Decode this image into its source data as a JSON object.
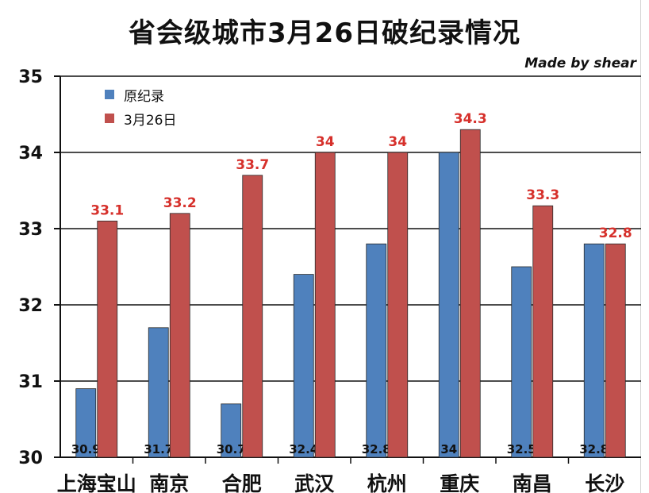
{
  "chart_data": {
    "type": "bar",
    "title": "省会级城市3月26日破纪录情况",
    "credit": "Made by shear",
    "categories": [
      "上海宝山",
      "南京",
      "合肥",
      "武汉",
      "杭州",
      "重庆",
      "南昌",
      "长沙"
    ],
    "series": [
      {
        "name": "原纪录",
        "color": "#4f81bd",
        "values": [
          30.9,
          31.7,
          30.7,
          32.4,
          32.8,
          34,
          32.5,
          32.8
        ],
        "value_labels": [
          "30.9",
          "31.7",
          "30.7",
          "32.4",
          "32.8",
          "34",
          "32.5",
          "32.8"
        ]
      },
      {
        "name": "3月26日",
        "color": "#c0504d",
        "values": [
          33.1,
          33.2,
          33.7,
          34,
          34,
          34.3,
          33.3,
          32.8
        ],
        "value_labels": [
          "33.1",
          "33.2",
          "33.7",
          "34",
          "34",
          "34.3",
          "33.3",
          "32.8"
        ]
      }
    ],
    "ylim": [
      30,
      35
    ],
    "yticks": [
      "30",
      "31",
      "32",
      "33",
      "34",
      "35"
    ],
    "grid": true,
    "legend": "top-left",
    "xlabel": "",
    "ylabel": ""
  }
}
